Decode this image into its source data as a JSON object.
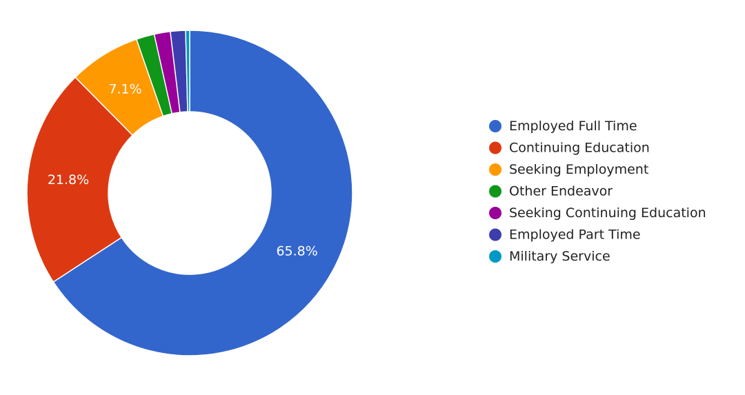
{
  "chart_data": {
    "type": "pie",
    "donut": true,
    "legend_position": "right",
    "series": [
      {
        "name": "Employed Full Time",
        "value": 65.8,
        "color": "#3366cc",
        "label": "65.8%"
      },
      {
        "name": "Continuing Education",
        "value": 21.8,
        "color": "#dc3912",
        "label": "21.8%"
      },
      {
        "name": "Seeking Employment",
        "value": 7.1,
        "color": "#ff9900",
        "label": "7.1%"
      },
      {
        "name": "Other Endeavor",
        "value": 1.8,
        "color": "#109618",
        "label": ""
      },
      {
        "name": "Seeking Continuing Education",
        "value": 1.6,
        "color": "#990099",
        "label": ""
      },
      {
        "name": "Employed Part Time",
        "value": 1.5,
        "color": "#3b3eac",
        "label": ""
      },
      {
        "name": "Military Service",
        "value": 0.4,
        "color": "#0099c6",
        "label": ""
      }
    ]
  }
}
